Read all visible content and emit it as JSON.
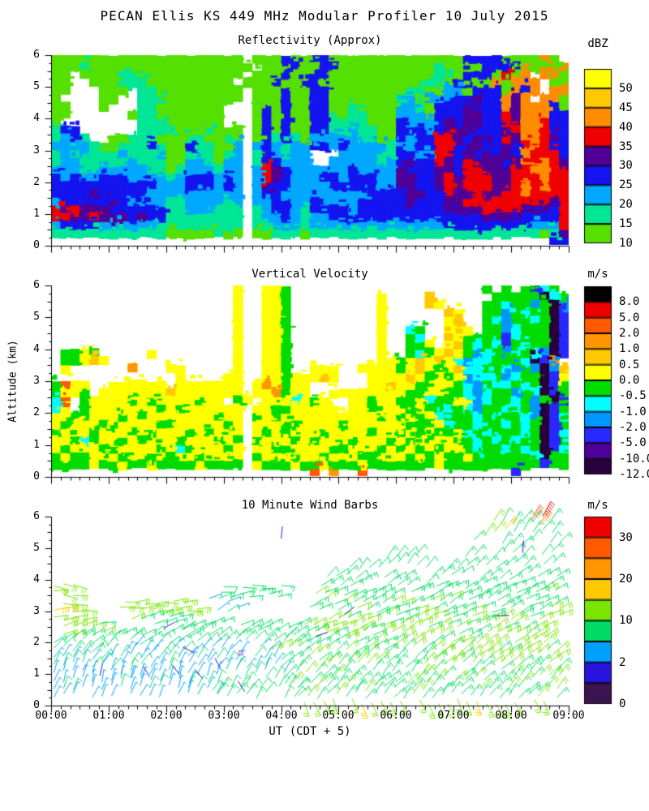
{
  "title": "PECAN Ellis KS 449 MHz Modular Profiler 10 July 2015",
  "axes": {
    "x_label": "UT  (CDT + 5)",
    "y_label": "Altitude (km)",
    "x_ticks": [
      "00:00",
      "01:00",
      "02:00",
      "03:00",
      "04:00",
      "05:00",
      "06:00",
      "07:00",
      "08:00",
      "09:00"
    ],
    "y_ticks": [
      "0",
      "1",
      "2",
      "3",
      "4",
      "5",
      "6"
    ],
    "x_range_hours": [
      0,
      9
    ],
    "y_range_km": [
      0,
      6
    ]
  },
  "chart_data": {
    "type": "heatmap+barbs",
    "panels": [
      {
        "id": "reflectivity",
        "type": "heatmap",
        "title": "Reflectivity (Approx)",
        "colorbar": {
          "unit": "dBZ",
          "colors": [
            "#FFFF00",
            "#FFC800",
            "#FF8C00",
            "#F00000",
            "#500096",
            "#1414F0",
            "#00A8FF",
            "#00E696",
            "#55E000"
          ],
          "labels": [
            {
              "text": "50",
              "boundary": 0
            },
            {
              "text": "45",
              "boundary": 1
            },
            {
              "text": "40",
              "boundary": 2
            },
            {
              "text": "35",
              "boundary": 3
            },
            {
              "text": "30",
              "boundary": 4
            },
            {
              "text": "25",
              "boundary": 5
            },
            {
              "text": "20",
              "boundary": 6
            },
            {
              "text": "15",
              "boundary": 7
            },
            {
              "text": "10",
              "boundary": 8
            }
          ]
        },
        "levels": {
          "1": "#55E000",
          "2": "#00E696",
          "3": "#00A8FF",
          "4": "#1414F0",
          "5": "#500096",
          "6": "#F00000",
          "7": "#FF8C00",
          "8": "#FFC800",
          "9": "#FFFF00"
        },
        "grid_cols": 54,
        "grid_rows": 24,
        "t0": 0,
        "t1": 9,
        "z0": 0,
        "z1": 6,
        "grid": [
          "11111111111111111111.11141144111111111111114444111171 1",
          "111211111111111111111.1114114411111111112111144441111711",
          "11.11112211111111111.11141144111111111112214441617 7711",
          "11..111222111111111.1114114411111111111221441171777 11",
          "11...111.22111111111.111411441111111122113314441747 7711",
          "1....11..22211111111.11141144111111123133344544757 7711",
          "11...1...221111111...141411441121111332144454447577741",
          "11......1221111111...141411441122111333144455446577744",
          "1........222111111...141411442222111433345455446577644",
          "244......22221112111.141411442232211444345554445677644",
          "2342..11222111221121.142421333332211434466545546577654",
          "33332112224211422113.343233443433332334466455445467644",
          "23232223222311222123.243233...333322443366454545476664",
          "23322222322211332133.264333..3333323454465465554576765",
          "33322333332212333233.365433333343333544455466555667766",
          "43433444333323444343.365433344344433554456566655666766",
          "44444444444333444343.354433334444433554456566655676766",
          "44445444443333333333.344333333333444455446556556676666",
          "34444454333322333323.334433433334444454445566666666656",
          "65655544444422333222.234432444434444444445555666655546",
          "66556555454422222222.233432334444444444444444555544446",
          "34444333333222222222.223332333333333333334444444443336",
          "22222222222211111211.112221222222222222222222222222125",
          "..............................................     .44"
        ]
      },
      {
        "id": "vertical-velocity",
        "type": "heatmap",
        "title": "Vertical Velocity",
        "colorbar": {
          "unit": "m/s",
          "colors": [
            "#000000",
            "#F00000",
            "#FF5A00",
            "#FF9600",
            "#FFC800",
            "#FFFF00",
            "#00DC00",
            "#00FFFF",
            "#0096FF",
            "#2828FF",
            "#50009B",
            "#28003C"
          ],
          "labels": [
            {
              "text": "8.0",
              "boundary": 0
            },
            {
              "text": "5.0",
              "boundary": 1
            },
            {
              "text": "2.0",
              "boundary": 2
            },
            {
              "text": "1.0",
              "boundary": 3
            },
            {
              "text": "0.5",
              "boundary": 4
            },
            {
              "text": "0.0",
              "boundary": 5
            },
            {
              "text": "-0.5",
              "boundary": 6
            },
            {
              "text": "-1.0",
              "boundary": 7
            },
            {
              "text": "-2.0",
              "boundary": 8
            },
            {
              "text": "-5.0",
              "boundary": 9
            },
            {
              "text": "-10.0",
              "boundary": 10
            },
            {
              "text": "-12.0",
              "boundary": 11
            }
          ]
        },
        "levels": {
          "0": "#000000",
          "1": "#F00000",
          "2": "#FF5A00",
          "3": "#FF9600",
          "4": "#FFC800",
          "5": "#FFFF00",
          "6": "#00DC00",
          "7": "#00FFFF",
          "8": "#0096FF",
          "9": "#2828FF",
          "a": "#50009B",
          "b": "#28003C"
        },
        "grid_cols": 54,
        "grid_rows": 24,
        "t0": 0,
        "t1": 9,
        "z0": 0,
        "z1": 6,
        "grid": [
          "...................5..556....................6.6.6976",
          "...................5..556.........5....4......66666b76",
          "...................5..556.........5....45....6676686b86",
          "...................5..556.........5......45..6686766b97",
          "...................5..556.........5......54..6786676b96",
          "...................5..556.........5..76..545.6687666b96",
          "...................5..556.........5..67..45666697666b96",
          "...................5..556.........5..665.54676796766b97",
          ".6656.....5........5..556.........5..676545687687678b96",
          ".66545.............5..556.........5565454578776667b93",
          ".5......3...55.....5..556..555..5555654565477667868b84",
          ".............5....55..55655545...555545656587768766b95",
          "6255..555555.5555555.535655......554556655678677676b96",
          "6556.555555545555555.553655..5555555566556678766867b96",
          "72.655556565555655 65.5557565..556556657665587667686b97",
          "75.65555555656555555.556655555.55655565667678667768b96",
          "55665556565555555655.656555555555565656576667676678b97",
          "56555665555665555565.555665555655555566657667667676b96",
          "65556555656555656555.565655565555655656566576766676b97",
          "55676556565556555656.655565655565556565655667676766b96",
          "56555665555657655565.556655556655565656565567667676b97",
          "65665556556565565555.655565565556655565656656666667b66",
          "66665665665666656666.566656656665666666656666666666966",
          "...........................2.3..2...............9.."
        ]
      },
      {
        "id": "wind-barbs",
        "type": "barbs",
        "title": "10 Minute Wind Barbs",
        "colorbar": {
          "unit": "m/s",
          "colors": [
            "#F00000",
            "#FF5A00",
            "#FF9600",
            "#FFC800",
            "#78E600",
            "#00DC64",
            "#00A0FF",
            "#2814DC",
            "#3C1450"
          ],
          "labels": [
            {
              "text": "30",
              "boundary": 0
            },
            {
              "text": "20",
              "boundary": 2
            },
            {
              "text": "10",
              "boundary": 4
            },
            {
              "text": "2",
              "boundary": 6
            },
            {
              "text": "0",
              "boundary": 8
            }
          ]
        },
        "speed_scale": {
          "bounds": [
            0,
            1,
            2,
            5,
            10,
            15,
            20,
            25,
            30,
            35
          ],
          "colors": [
            "#3C1450",
            "#2814DC",
            "#00A0FF",
            "#00DC64",
            "#78E600",
            "#FFC800",
            "#FF9600",
            "#FF5A00",
            "#F00000"
          ]
        },
        "barb_interval_min": 10,
        "rows": [
          {
            "z": 0.12,
            "runs": [
              [
                4.4,
                8.7,
                13,
                -62
              ]
            ]
          },
          {
            "z": 0.32,
            "runs": [
              [
                0.05,
                2.9,
                4,
                66
              ],
              [
                2.9,
                4.3,
                7,
                60
              ],
              [
                4.3,
                8.85,
                9,
                52
              ]
            ]
          },
          {
            "z": 0.56,
            "runs": [
              [
                0.05,
                2.8,
                4.5,
                70
              ],
              [
                2.8,
                4.3,
                7,
                58
              ],
              [
                4.3,
                8.85,
                9,
                50
              ]
            ]
          },
          {
            "z": 0.8,
            "runs": [
              [
                0.05,
                1.4,
                4,
                74
              ],
              [
                1.4,
                2.4,
                3,
                70
              ],
              [
                2.4,
                4.2,
                6,
                62
              ],
              [
                4.2,
                8.85,
                9,
                48
              ]
            ]
          },
          {
            "z": 1.05,
            "runs": [
              [
                0.05,
                4.1,
                4.5,
                68
              ],
              [
                4.1,
                6.5,
                9,
                52
              ],
              [
                6.5,
                8.85,
                10,
                46
              ]
            ]
          },
          {
            "z": 1.3,
            "runs": [
              [
                0.05,
                0.9,
                7,
                62
              ],
              [
                0.9,
                4.0,
                4.5,
                60
              ],
              [
                4.0,
                8.85,
                10,
                44
              ]
            ]
          },
          {
            "z": 1.55,
            "runs": [
              [
                0.05,
                4.0,
                4.5,
                54
              ],
              [
                4.0,
                6.8,
                9,
                44
              ],
              [
                6.8,
                8.85,
                11,
                40
              ]
            ]
          },
          {
            "z": 1.8,
            "runs": [
              [
                0.05,
                0.8,
                8,
                46
              ],
              [
                0.8,
                3.8,
                4.5,
                50
              ],
              [
                3.8,
                8.85,
                10,
                38
              ]
            ]
          },
          {
            "z": 2.05,
            "runs": [
              [
                0.05,
                4.3,
                8,
                40
              ],
              [
                4.3,
                7.4,
                10,
                36
              ],
              [
                7.4,
                8.85,
                12,
                34
              ]
            ]
          },
          {
            "z": 2.3,
            "runs": [
              [
                0.05,
                1.1,
                10,
                24
              ],
              [
                1.1,
                4.6,
                8,
                34
              ],
              [
                4.6,
                8.85,
                11,
                30
              ]
            ]
          },
          {
            "z": 2.55,
            "runs": [
              [
                0.05,
                0.9,
                12,
                14
              ],
              [
                1.8,
                4.4,
                8,
                28
              ],
              [
                4.4,
                8.85,
                11,
                28
              ]
            ]
          },
          {
            "z": 2.8,
            "runs": [
              [
                0.05,
                0.7,
                13,
                8
              ],
              [
                1.4,
                2.5,
                9,
                18
              ],
              [
                4.5,
                8.85,
                10,
                26
              ]
            ]
          },
          {
            "z": 3.05,
            "runs": [
              [
                0.05,
                0.6,
                14,
                4
              ],
              [
                1.2,
                2.6,
                12,
                8
              ],
              [
                2.9,
                3.25,
                4.5,
                28
              ],
              [
                4.5,
                8.85,
                9,
                28
              ]
            ]
          },
          {
            "z": 3.3,
            "runs": [
              [
                0.05,
                0.5,
                14,
                0
              ],
              [
                1.3,
                2.4,
                12,
                4
              ],
              [
                2.75,
                3.1,
                4.5,
                24
              ],
              [
                4.6,
                8.85,
                9,
                32
              ]
            ]
          },
          {
            "z": 3.55,
            "runs": [
              [
                0.05,
                0.5,
                13,
                -4
              ],
              [
                2.95,
                4.25,
                8,
                8
              ],
              [
                4.6,
                8.85,
                9,
                30
              ]
            ]
          },
          {
            "z": 3.8,
            "runs": [
              [
                0.05,
                0.45,
                13,
                -8
              ],
              [
                3.0,
                4.15,
                8,
                4
              ],
              [
                4.7,
                8.85,
                8,
                32
              ]
            ]
          },
          {
            "z": 4.1,
            "runs": [
              [
                4.8,
                8.85,
                8,
                38
              ]
            ]
          },
          {
            "z": 4.45,
            "runs": [
              [
                5.2,
                6.6,
                7,
                46
              ],
              [
                6.9,
                8.85,
                8,
                44
              ]
            ]
          },
          {
            "z": 4.8,
            "runs": [
              [
                5.85,
                6.45,
                7,
                50
              ],
              [
                7.2,
                8.85,
                8,
                46
              ]
            ]
          },
          {
            "z": 5.15,
            "runs": [
              [
                7.35,
                8.85,
                8,
                50
              ]
            ]
          },
          {
            "z": 5.5,
            "runs": [
              [
                7.55,
                8.8,
                9,
                54
              ]
            ]
          },
          {
            "z": 5.85,
            "runs": [
              [
                7.7,
                8.7,
                9,
                58
              ]
            ]
          }
        ],
        "extra_barbs": [
          [
            0.85,
            0.95,
            1.6,
            78
          ],
          [
            1.6,
            1.25,
            1.6,
            -58
          ],
          [
            2.1,
            1.3,
            1.6,
            -52
          ],
          [
            2.5,
            1.15,
            1.6,
            -50
          ],
          [
            2.85,
            1.5,
            1.6,
            -62
          ],
          [
            3.25,
            0.78,
            1.6,
            -58
          ],
          [
            1.95,
            2.45,
            1.6,
            28
          ],
          [
            2.3,
            1.85,
            0.8,
            -28
          ],
          [
            4.6,
            2.2,
            1.6,
            18
          ],
          [
            5.1,
            2.9,
            1.6,
            36
          ],
          [
            7.75,
            2.85,
            0.8,
            2
          ],
          [
            4.0,
            5.3,
            1.6,
            84
          ],
          [
            8.2,
            4.85,
            1.6,
            86
          ],
          [
            8.35,
            5.9,
            26,
            60
          ],
          [
            8.5,
            5.75,
            23,
            58
          ],
          [
            8.55,
            6.0,
            30,
            62
          ],
          [
            7.9,
            5.6,
            16,
            55
          ]
        ],
        "marker": {
          "t": 3.3,
          "z": 1.67,
          "color": "#A050C8"
        }
      }
    ]
  }
}
